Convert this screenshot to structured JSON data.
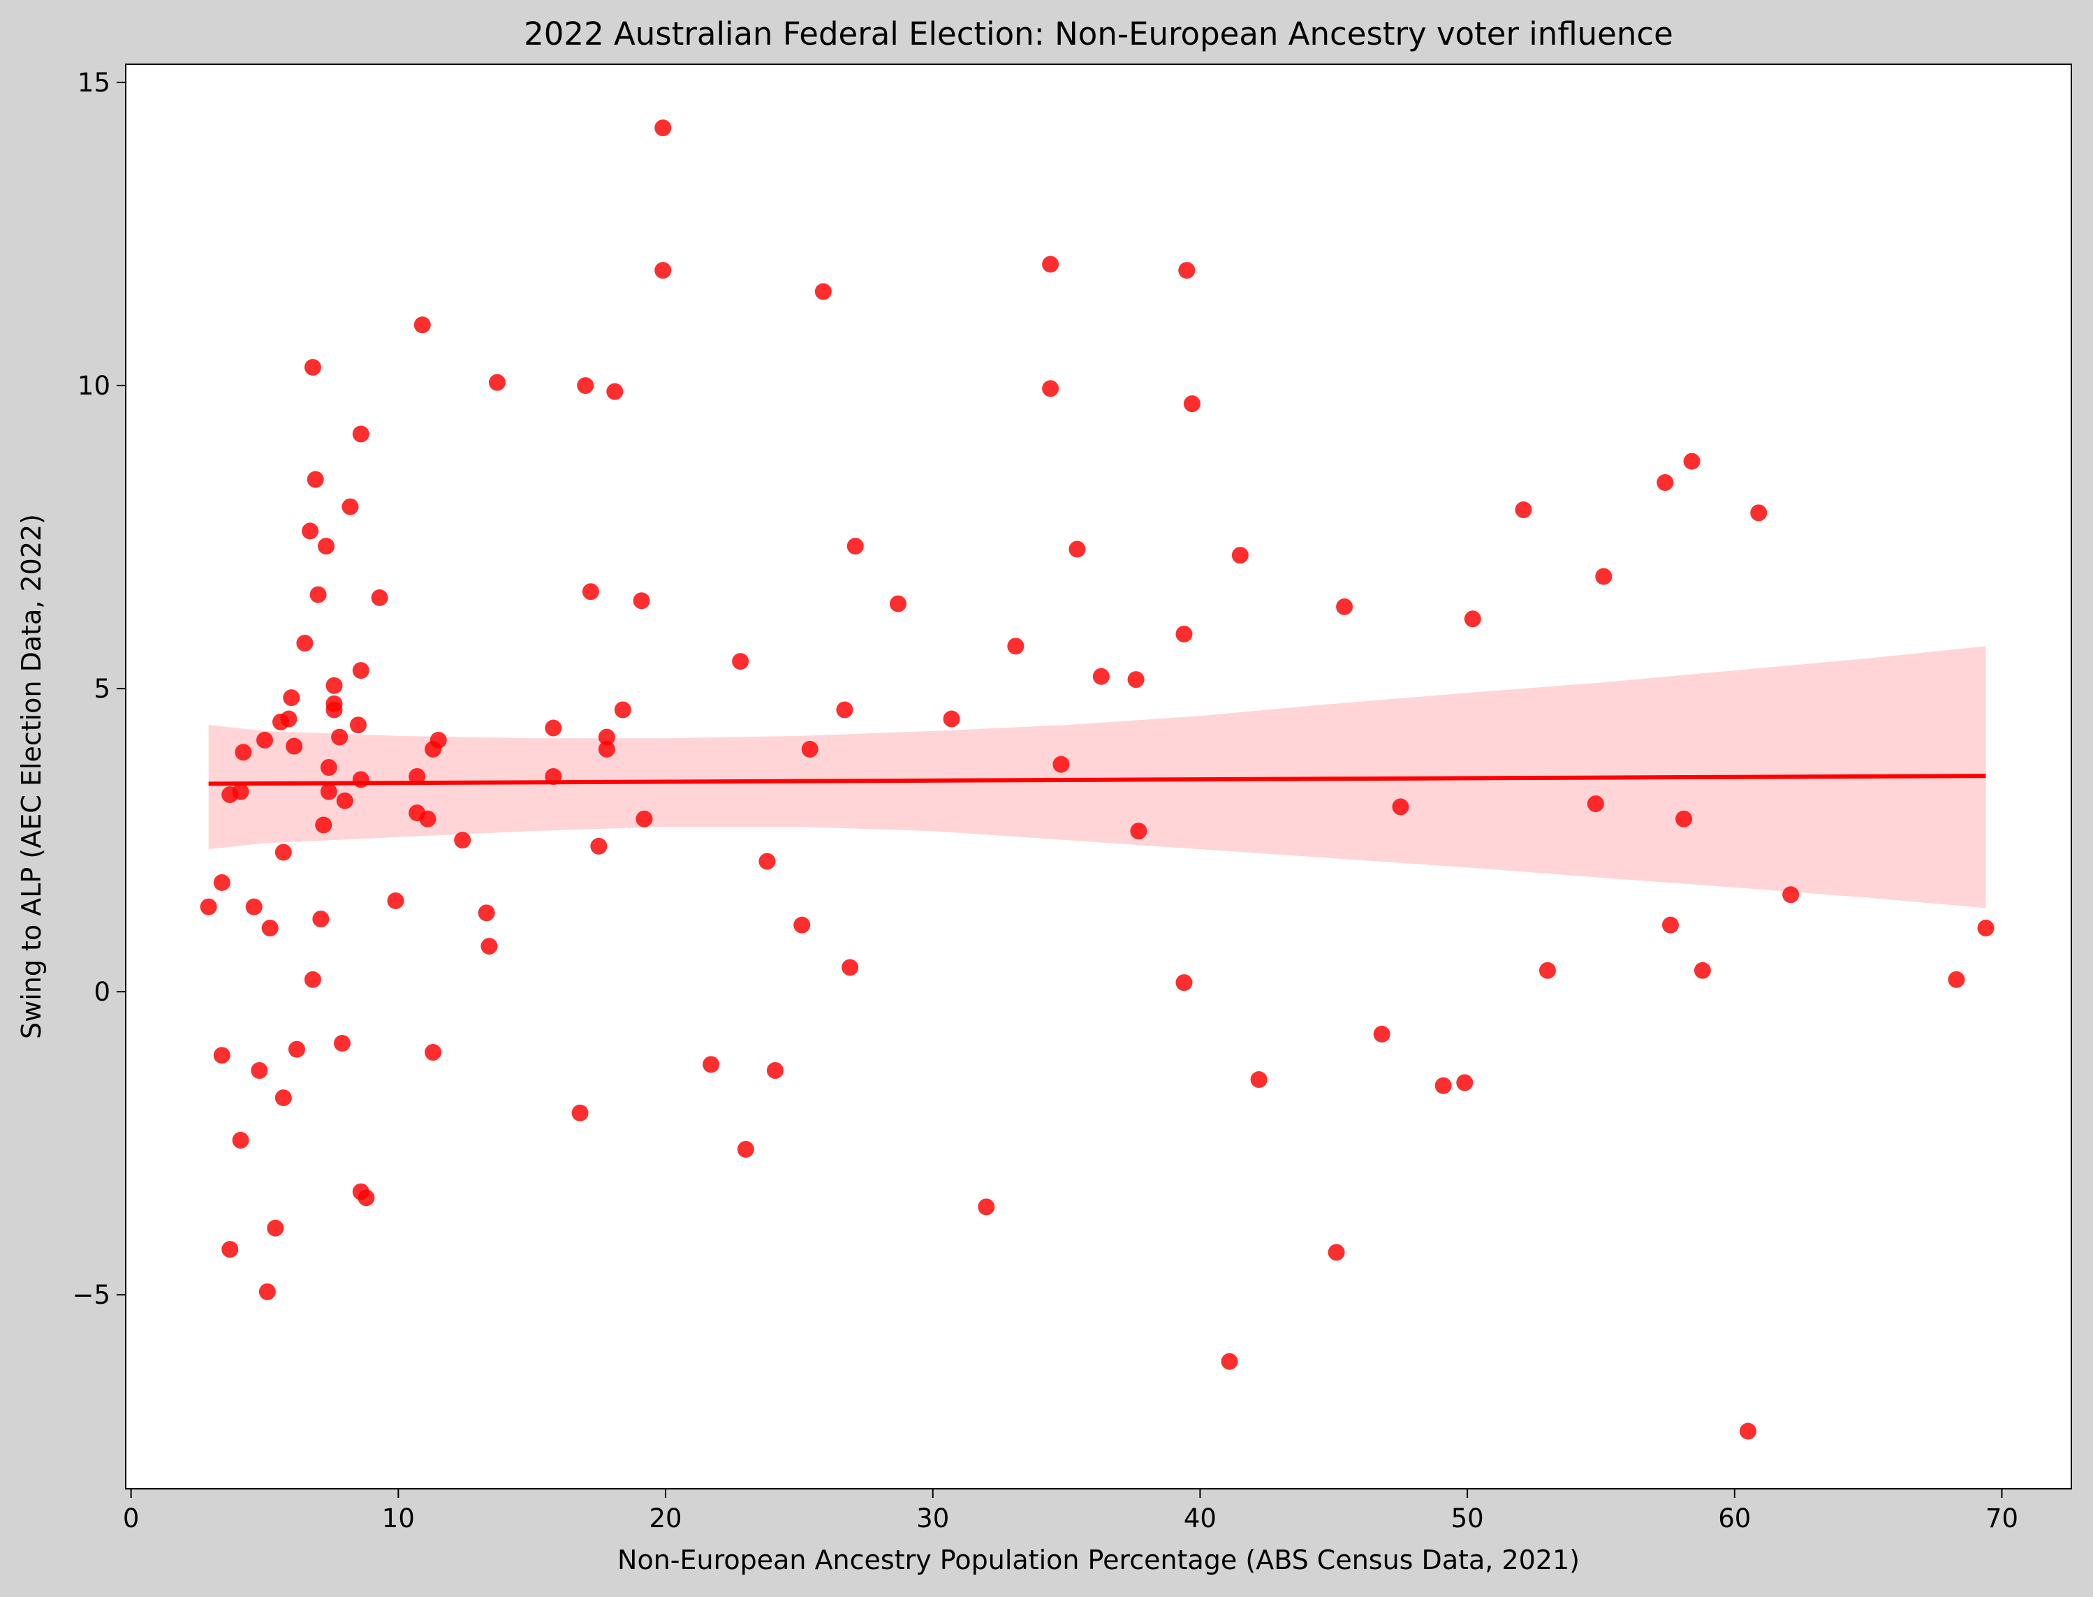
{
  "chart_data": {
    "type": "scatter",
    "title": "2022 Australian Federal Election: Non-European Ancestry voter influence",
    "xlabel": "Non-European Ancestry Population Percentage (ABS Census Data, 2021)",
    "ylabel": "Swing to ALP (AEC Election Data, 2022)",
    "xlim": [
      -0.2,
      72.6
    ],
    "ylim": [
      -8.2,
      15.3
    ],
    "xticks": [
      0,
      10,
      20,
      30,
      40,
      50,
      60,
      70
    ],
    "xtick_labels": [
      "0",
      "10",
      "20",
      "30",
      "40",
      "50",
      "60",
      "70"
    ],
    "yticks": [
      -5,
      0,
      5,
      10,
      15
    ],
    "ytick_labels": [
      "−5",
      "0",
      "5",
      "10",
      "15"
    ],
    "grid": false,
    "colors": {
      "points": "#ff0000",
      "fit_line": "#ff0000",
      "band": "#ffd5d8",
      "plot_bg": "#ffffff",
      "figure_bg": "#d3d3d3"
    },
    "points": [
      {
        "x": 2.9,
        "y": 1.4
      },
      {
        "x": 3.4,
        "y": 1.8
      },
      {
        "x": 3.4,
        "y": -1.05
      },
      {
        "x": 3.7,
        "y": 3.25
      },
      {
        "x": 3.7,
        "y": -4.25
      },
      {
        "x": 4.1,
        "y": 3.3
      },
      {
        "x": 4.1,
        "y": -2.45
      },
      {
        "x": 4.2,
        "y": 3.95
      },
      {
        "x": 4.6,
        "y": 1.4
      },
      {
        "x": 4.8,
        "y": -1.3
      },
      {
        "x": 5.0,
        "y": 4.15
      },
      {
        "x": 5.1,
        "y": -4.95
      },
      {
        "x": 5.2,
        "y": 1.05
      },
      {
        "x": 5.4,
        "y": -3.9
      },
      {
        "x": 5.6,
        "y": 4.45
      },
      {
        "x": 5.7,
        "y": 2.3
      },
      {
        "x": 5.7,
        "y": -1.75
      },
      {
        "x": 5.9,
        "y": 4.5
      },
      {
        "x": 6.0,
        "y": 4.85
      },
      {
        "x": 6.1,
        "y": 4.05
      },
      {
        "x": 6.2,
        "y": -0.95
      },
      {
        "x": 6.5,
        "y": 5.75
      },
      {
        "x": 6.7,
        "y": 7.6
      },
      {
        "x": 6.8,
        "y": 10.3
      },
      {
        "x": 6.8,
        "y": 0.2
      },
      {
        "x": 6.9,
        "y": 8.45
      },
      {
        "x": 7.0,
        "y": 6.55
      },
      {
        "x": 7.1,
        "y": 1.2
      },
      {
        "x": 7.2,
        "y": 2.75
      },
      {
        "x": 7.3,
        "y": 7.35
      },
      {
        "x": 7.4,
        "y": 3.7
      },
      {
        "x": 7.4,
        "y": 3.3
      },
      {
        "x": 7.6,
        "y": 5.05
      },
      {
        "x": 7.6,
        "y": 4.75
      },
      {
        "x": 7.6,
        "y": 4.65
      },
      {
        "x": 7.8,
        "y": 4.2
      },
      {
        "x": 7.9,
        "y": -0.85
      },
      {
        "x": 8.0,
        "y": 3.15
      },
      {
        "x": 8.2,
        "y": 8.0
      },
      {
        "x": 8.5,
        "y": 4.4
      },
      {
        "x": 8.6,
        "y": 9.2
      },
      {
        "x": 8.6,
        "y": 5.3
      },
      {
        "x": 8.6,
        "y": 3.5
      },
      {
        "x": 8.6,
        "y": -3.3
      },
      {
        "x": 8.8,
        "y": -3.4
      },
      {
        "x": 9.3,
        "y": 6.5
      },
      {
        "x": 9.9,
        "y": 1.5
      },
      {
        "x": 10.7,
        "y": 3.55
      },
      {
        "x": 10.7,
        "y": 2.95
      },
      {
        "x": 10.9,
        "y": 11.0
      },
      {
        "x": 11.1,
        "y": 2.85
      },
      {
        "x": 11.3,
        "y": 4.0
      },
      {
        "x": 11.3,
        "y": -1.0
      },
      {
        "x": 11.5,
        "y": 4.15
      },
      {
        "x": 12.4,
        "y": 2.5
      },
      {
        "x": 13.3,
        "y": 1.3
      },
      {
        "x": 13.4,
        "y": 0.75
      },
      {
        "x": 13.7,
        "y": 10.05
      },
      {
        "x": 15.8,
        "y": 4.35
      },
      {
        "x": 15.8,
        "y": 3.55
      },
      {
        "x": 16.8,
        "y": -2.0
      },
      {
        "x": 17.0,
        "y": 10.0
      },
      {
        "x": 17.2,
        "y": 6.6
      },
      {
        "x": 17.5,
        "y": 2.4
      },
      {
        "x": 17.8,
        "y": 4.2
      },
      {
        "x": 17.8,
        "y": 4.0
      },
      {
        "x": 18.1,
        "y": 9.9
      },
      {
        "x": 18.4,
        "y": 4.65
      },
      {
        "x": 19.1,
        "y": 6.45
      },
      {
        "x": 19.2,
        "y": 2.85
      },
      {
        "x": 19.9,
        "y": 14.25
      },
      {
        "x": 19.9,
        "y": 11.9
      },
      {
        "x": 21.7,
        "y": -1.2
      },
      {
        "x": 22.8,
        "y": 5.45
      },
      {
        "x": 23.0,
        "y": -2.6
      },
      {
        "x": 23.8,
        "y": 2.15
      },
      {
        "x": 24.1,
        "y": -1.3
      },
      {
        "x": 25.1,
        "y": 1.1
      },
      {
        "x": 25.4,
        "y": 4.0
      },
      {
        "x": 25.9,
        "y": 11.55
      },
      {
        "x": 26.7,
        "y": 4.65
      },
      {
        "x": 26.9,
        "y": 0.4
      },
      {
        "x": 27.1,
        "y": 7.35
      },
      {
        "x": 28.7,
        "y": 6.4
      },
      {
        "x": 30.7,
        "y": 4.5
      },
      {
        "x": 32.0,
        "y": -3.55
      },
      {
        "x": 33.1,
        "y": 5.7
      },
      {
        "x": 34.4,
        "y": 12.0
      },
      {
        "x": 34.4,
        "y": 9.95
      },
      {
        "x": 34.8,
        "y": 3.75
      },
      {
        "x": 35.4,
        "y": 7.3
      },
      {
        "x": 36.3,
        "y": 5.2
      },
      {
        "x": 37.6,
        "y": 5.15
      },
      {
        "x": 37.7,
        "y": 2.65
      },
      {
        "x": 39.4,
        "y": 5.9
      },
      {
        "x": 39.4,
        "y": 0.15
      },
      {
        "x": 39.5,
        "y": 11.9
      },
      {
        "x": 39.7,
        "y": 9.7
      },
      {
        "x": 41.1,
        "y": -6.1
      },
      {
        "x": 41.5,
        "y": 7.2
      },
      {
        "x": 42.2,
        "y": -1.45
      },
      {
        "x": 45.1,
        "y": -4.3
      },
      {
        "x": 45.4,
        "y": 6.35
      },
      {
        "x": 46.8,
        "y": -0.7
      },
      {
        "x": 47.5,
        "y": 3.05
      },
      {
        "x": 49.1,
        "y": -1.55
      },
      {
        "x": 49.9,
        "y": -1.5
      },
      {
        "x": 50.2,
        "y": 6.15
      },
      {
        "x": 52.1,
        "y": 7.95
      },
      {
        "x": 53.0,
        "y": 0.35
      },
      {
        "x": 54.8,
        "y": 3.1
      },
      {
        "x": 55.1,
        "y": 6.85
      },
      {
        "x": 57.4,
        "y": 8.4
      },
      {
        "x": 57.6,
        "y": 1.1
      },
      {
        "x": 58.1,
        "y": 2.85
      },
      {
        "x": 58.4,
        "y": 8.75
      },
      {
        "x": 58.8,
        "y": 0.35
      },
      {
        "x": 60.5,
        "y": -7.25
      },
      {
        "x": 60.9,
        "y": 7.9
      },
      {
        "x": 62.1,
        "y": 1.6
      },
      {
        "x": 68.3,
        "y": 0.2
      },
      {
        "x": 69.4,
        "y": 1.05
      }
    ],
    "fit_line": {
      "x": [
        2.9,
        69.4
      ],
      "y": [
        3.43,
        3.56
      ]
    },
    "confidence_band": {
      "x": [
        2.9,
        5,
        10,
        15,
        20,
        25,
        30,
        35,
        40,
        45,
        50,
        55,
        60,
        65,
        69.4
      ],
      "upper": [
        4.4,
        4.3,
        4.22,
        4.18,
        4.18,
        4.22,
        4.3,
        4.4,
        4.55,
        4.75,
        4.93,
        5.1,
        5.3,
        5.5,
        5.7
      ],
      "lower": [
        2.35,
        2.45,
        2.55,
        2.65,
        2.72,
        2.72,
        2.65,
        2.5,
        2.35,
        2.2,
        2.05,
        1.88,
        1.72,
        1.55,
        1.38
      ]
    }
  }
}
